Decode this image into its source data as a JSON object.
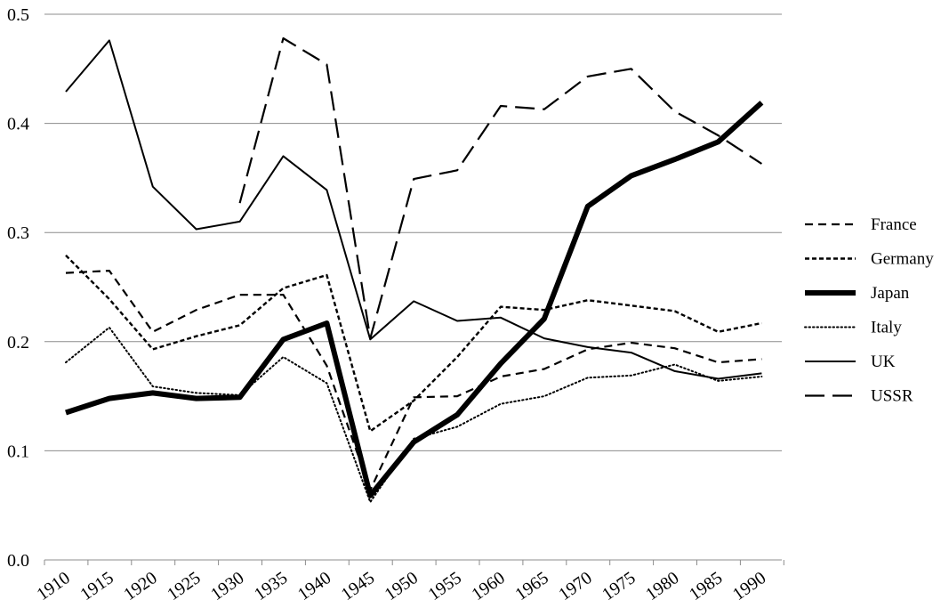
{
  "chart_data": {
    "type": "line",
    "title": "",
    "xlabel": "",
    "ylabel": "",
    "categories": [
      "1910",
      "1915",
      "1920",
      "1925",
      "1930",
      "1935",
      "1940",
      "1945",
      "1950",
      "1955",
      "1960",
      "1965",
      "1970",
      "1975",
      "1980",
      "1985",
      "1990"
    ],
    "y_ticks": [
      "0.0",
      "0.1",
      "0.2",
      "0.3",
      "0.4",
      "0.5"
    ],
    "ylim": [
      0,
      0.5
    ],
    "grid": "horizontal",
    "legend_position": "right",
    "series": [
      {
        "name": "France",
        "style": "dashed",
        "color": "#000000",
        "values": [
          0.263,
          0.265,
          0.209,
          0.229,
          0.243,
          0.243,
          0.178,
          0.064,
          0.149,
          0.15,
          0.168,
          0.175,
          0.193,
          0.199,
          0.194,
          0.181,
          0.184
        ]
      },
      {
        "name": "Germany",
        "style": "short-dashed",
        "color": "#000000",
        "values": [
          0.279,
          0.239,
          0.193,
          0.205,
          0.215,
          0.249,
          0.261,
          0.118,
          0.146,
          0.186,
          0.232,
          0.229,
          0.238,
          0.233,
          0.228,
          0.209,
          0.217
        ]
      },
      {
        "name": "Japan",
        "style": "thick-solid",
        "color": "#000000",
        "values": [
          0.135,
          0.148,
          0.153,
          0.148,
          0.149,
          0.202,
          0.217,
          0.059,
          0.108,
          0.133,
          0.18,
          0.221,
          0.324,
          0.352,
          0.367,
          0.383,
          0.419
        ]
      },
      {
        "name": "Italy",
        "style": "dotted",
        "color": "#000000",
        "values": [
          0.181,
          0.213,
          0.159,
          0.153,
          0.151,
          0.186,
          0.162,
          0.053,
          0.111,
          0.122,
          0.143,
          0.15,
          0.167,
          0.169,
          0.179,
          0.164,
          0.168
        ]
      },
      {
        "name": "UK",
        "style": "solid",
        "color": "#000000",
        "values": [
          0.429,
          0.476,
          0.342,
          0.303,
          0.31,
          0.37,
          0.339,
          0.202,
          0.237,
          0.219,
          0.222,
          0.203,
          0.195,
          0.19,
          0.173,
          0.166,
          0.171
        ]
      },
      {
        "name": "USSR",
        "style": "long-dashed",
        "color": "#000000",
        "values": [
          null,
          null,
          null,
          null,
          0.327,
          0.478,
          0.454,
          0.203,
          0.349,
          0.357,
          0.416,
          0.413,
          0.443,
          0.45,
          0.411,
          0.389,
          0.363
        ]
      }
    ]
  }
}
